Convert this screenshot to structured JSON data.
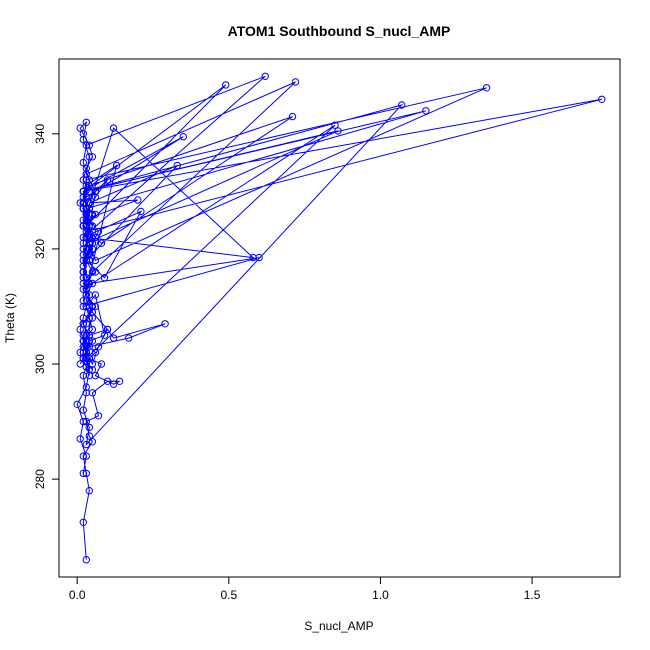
{
  "chart_data": {
    "type": "line",
    "title": "ATOM1 Southbound S_nucl_AMP",
    "xlabel": "S_nucl_AMP",
    "ylabel": "Theta (K)",
    "xlim": [
      -0.06,
      1.79
    ],
    "ylim": [
      263,
      353
    ],
    "xticks": [
      0.0,
      0.5,
      1.0,
      1.5
    ],
    "yticks": [
      280,
      300,
      320,
      340
    ],
    "xtick_labels": [
      "0.0",
      "0.5",
      "1.0",
      "1.5"
    ],
    "ytick_labels": [
      "280",
      "300",
      "320",
      "340"
    ],
    "grid": false,
    "legend": "none",
    "color": "#0000ff",
    "series": [
      {
        "marker": "open-circle",
        "line": true,
        "x": [
          0.03,
          0.02,
          0.04,
          0.03,
          0.02,
          0.05,
          0.04,
          0.03,
          0.07,
          0.05,
          0.1,
          0.14,
          0.12,
          0.06,
          0.08,
          0.04,
          0.03,
          0.02,
          0.04,
          0.03,
          0.01,
          0.02,
          0.05,
          0.04,
          0.03,
          0.06,
          0.09,
          0.04,
          0.02,
          0.05,
          0.03,
          0.06,
          0.04,
          0.17,
          0.29,
          0.12,
          0.1,
          0.04,
          0.02,
          0.03,
          0.05,
          0.02,
          0.01,
          0.03,
          0.04,
          0.02,
          0.06,
          0.03,
          0.05,
          0.02,
          0.03,
          0.02,
          0.04,
          0.03,
          0.06,
          0.01,
          0.04,
          0.02,
          0.03,
          0.05,
          0.04,
          0.02,
          0.01,
          0.03,
          0.02,
          0.04,
          0.03,
          0.06,
          0.02,
          0.05,
          0.04,
          0.03,
          0.02,
          0.03,
          0.05,
          0.1,
          0.07,
          0.05,
          0.03,
          0.02,
          0.01,
          0.02,
          0.03,
          0.04,
          0.02,
          0.06,
          0.04,
          0.05,
          0.03,
          0.58,
          0.12,
          0.03,
          0.04,
          0.02,
          0.05,
          0.03,
          0.13,
          0.03,
          0.02,
          0.1,
          0.06,
          0.03,
          0.07,
          0.04,
          0.02,
          0.06,
          0.02,
          0.03,
          0.49,
          0.02,
          0.04,
          0.02,
          0.08,
          0.71,
          0.04,
          0.02,
          0.03,
          0.06,
          0.04,
          0.02,
          0.03,
          0.05,
          0.02,
          0.04,
          0.03,
          0.85,
          0.02,
          0.05,
          0.03,
          0.02,
          0.04,
          0.02,
          0.03,
          0.02,
          0.04,
          0.03,
          1.07,
          0.02,
          0.03,
          0.04,
          0.05,
          0.02,
          0.03,
          0.72,
          0.03,
          0.06,
          0.02,
          0.04,
          0.03,
          0.86,
          0.02,
          1.15,
          0.03,
          0.02,
          0.04,
          0.06,
          1.35,
          0.03,
          0.02,
          0.05,
          0.03,
          1.73,
          0.02,
          0.04,
          0.03,
          0.02,
          0.03,
          0.09,
          0.21,
          0.02,
          0.62,
          0.03,
          0.02,
          0.04,
          0.03,
          0.35,
          0.02,
          0.03,
          0.02,
          0.05,
          0.03,
          0.33,
          0.04,
          0.2,
          0.02,
          0.03,
          0.04,
          0.02,
          0.03,
          0.02,
          0.6,
          0.04,
          0.02,
          0.05,
          0.03,
          0.02,
          0.04,
          0.03,
          0.0,
          0.02,
          0.01,
          0.03,
          0.02
        ],
        "y": [
          266,
          272.5,
          278,
          281,
          284,
          286.5,
          287.5,
          290,
          291,
          295,
          297,
          297,
          296.5,
          298,
          300,
          301,
          303,
          305,
          298,
          299.5,
          302,
          304,
          306,
          308,
          310,
          312,
          305,
          304,
          301,
          299,
          300.5,
          302,
          303,
          304.5,
          307,
          304.5,
          306,
          305,
          303,
          302,
          304,
          301,
          300,
          302,
          305,
          307,
          310,
          312,
          314,
          316,
          318,
          320,
          322,
          324,
          326,
          328,
          330,
          332,
          334,
          336,
          338,
          340,
          341,
          342,
          339,
          336,
          333,
          330,
          327,
          324,
          321,
          318,
          315,
          312,
          309,
          306,
          303,
          300,
          302,
          304,
          306,
          308,
          310,
          312,
          314,
          316,
          318,
          320,
          322,
          318.5,
          341,
          326,
          322,
          319,
          316,
          313,
          334.5,
          331,
          328,
          332,
          329,
          326,
          323,
          320,
          317,
          330,
          327,
          324,
          348.5,
          330,
          327,
          324,
          321,
          343,
          331,
          328,
          325,
          322,
          319,
          316,
          313,
          310,
          307,
          304,
          301,
          341.5,
          313,
          310,
          307,
          304,
          301,
          298,
          295,
          292,
          289,
          286,
          345,
          330,
          327,
          324,
          321,
          318,
          315,
          349,
          333,
          330,
          327,
          324,
          321,
          340.5,
          330,
          344,
          327,
          324,
          321,
          318,
          348,
          332,
          329,
          326,
          323,
          346,
          330,
          327,
          324,
          321,
          318,
          315,
          326.5,
          322,
          350,
          338,
          335,
          332,
          329,
          339.5,
          330,
          327,
          324,
          321,
          318,
          334.5,
          328,
          328.5,
          325,
          322,
          319,
          316,
          313,
          310,
          318.5,
          314,
          311,
          308,
          305,
          302,
          299,
          296,
          293,
          290,
          287,
          284,
          281
        ]
      }
    ]
  }
}
